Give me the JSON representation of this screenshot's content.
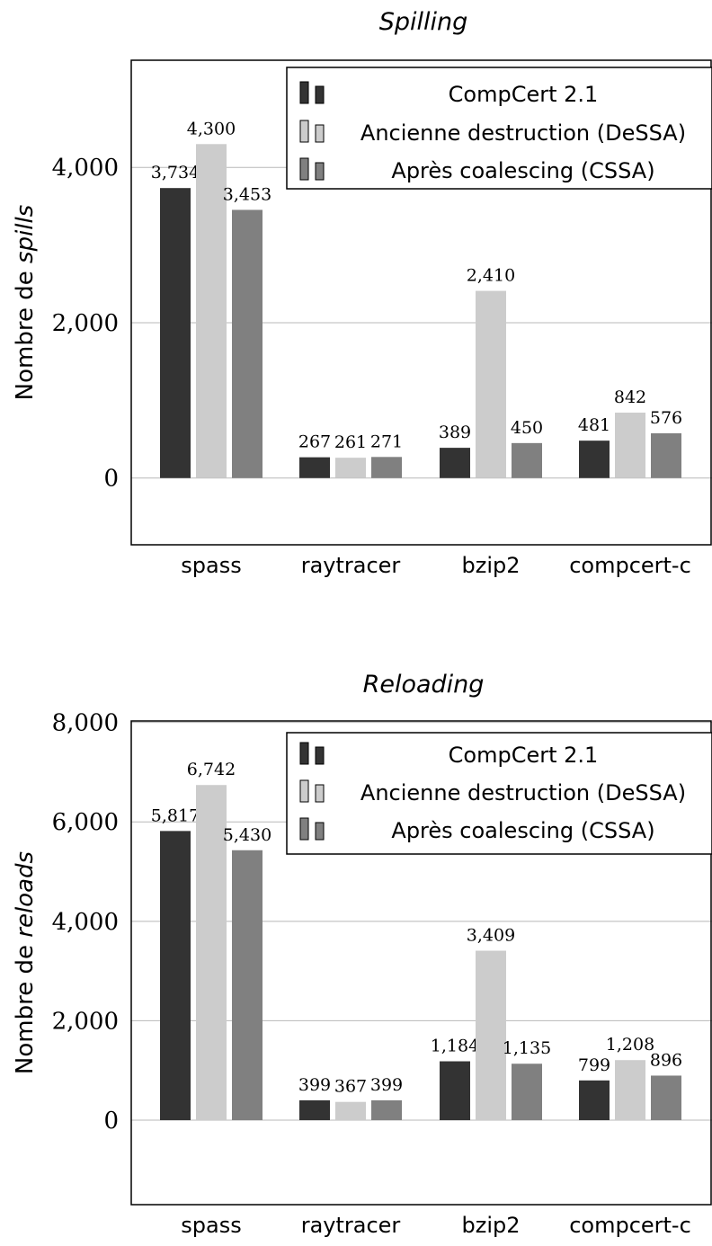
{
  "colors": {
    "CompCert 2.1": "#333333",
    "Ancienne destruction (DeSSA)": "#cccccc",
    "Après coalescing (CSSA)": "#808080"
  },
  "chart_data": [
    {
      "type": "bar",
      "title": "Spilling",
      "ylabel": {
        "prefix": "Nombre de ",
        "emph": "spills"
      },
      "xlabel": "",
      "categories": [
        "spass",
        "raytracer",
        "bzip2",
        "compcert-c"
      ],
      "series": [
        {
          "name": "CompCert 2.1",
          "values": [
            3734,
            267,
            389,
            481
          ]
        },
        {
          "name": "Ancienne destruction (DeSSA)",
          "values": [
            4300,
            261,
            2410,
            842
          ]
        },
        {
          "name": "Après coalescing (CSSA)",
          "values": [
            3453,
            271,
            450,
            576
          ]
        }
      ],
      "data_labels": [
        [
          "3,734",
          "267",
          "389",
          "481"
        ],
        [
          "4,300",
          "261",
          "2,410",
          "842"
        ],
        [
          "3,453",
          "271",
          "450",
          "576"
        ]
      ],
      "yticks": [
        0,
        2000,
        4000
      ],
      "ytick_labels": [
        "0",
        "2,000",
        "4,000"
      ],
      "ylim": [
        -860,
        5380
      ],
      "grid": "horizontal",
      "legend_position": "top-right"
    },
    {
      "type": "bar",
      "title": "Reloading",
      "ylabel": {
        "prefix": "Nombre de ",
        "emph": "reloads"
      },
      "xlabel": "",
      "categories": [
        "spass",
        "raytracer",
        "bzip2",
        "compcert-c"
      ],
      "series": [
        {
          "name": "CompCert 2.1",
          "values": [
            5817,
            399,
            1184,
            799
          ]
        },
        {
          "name": "Ancienne destruction (DeSSA)",
          "values": [
            6742,
            367,
            3409,
            1208
          ]
        },
        {
          "name": "Après coalescing (CSSA)",
          "values": [
            5430,
            399,
            1135,
            896
          ]
        }
      ],
      "data_labels": [
        [
          "5,817",
          "399",
          "1,184",
          "799"
        ],
        [
          "6,742",
          "367",
          "3,409",
          "1,208"
        ],
        [
          "5,430",
          "399",
          "1,135",
          "896"
        ]
      ],
      "yticks": [
        0,
        2000,
        4000,
        6000,
        8000
      ],
      "ytick_labels": [
        "0",
        "2,000",
        "4,000",
        "6,000",
        "8,000"
      ],
      "ylim": [
        -1700,
        8030
      ],
      "grid": "horizontal",
      "legend_position": "top-right"
    }
  ]
}
